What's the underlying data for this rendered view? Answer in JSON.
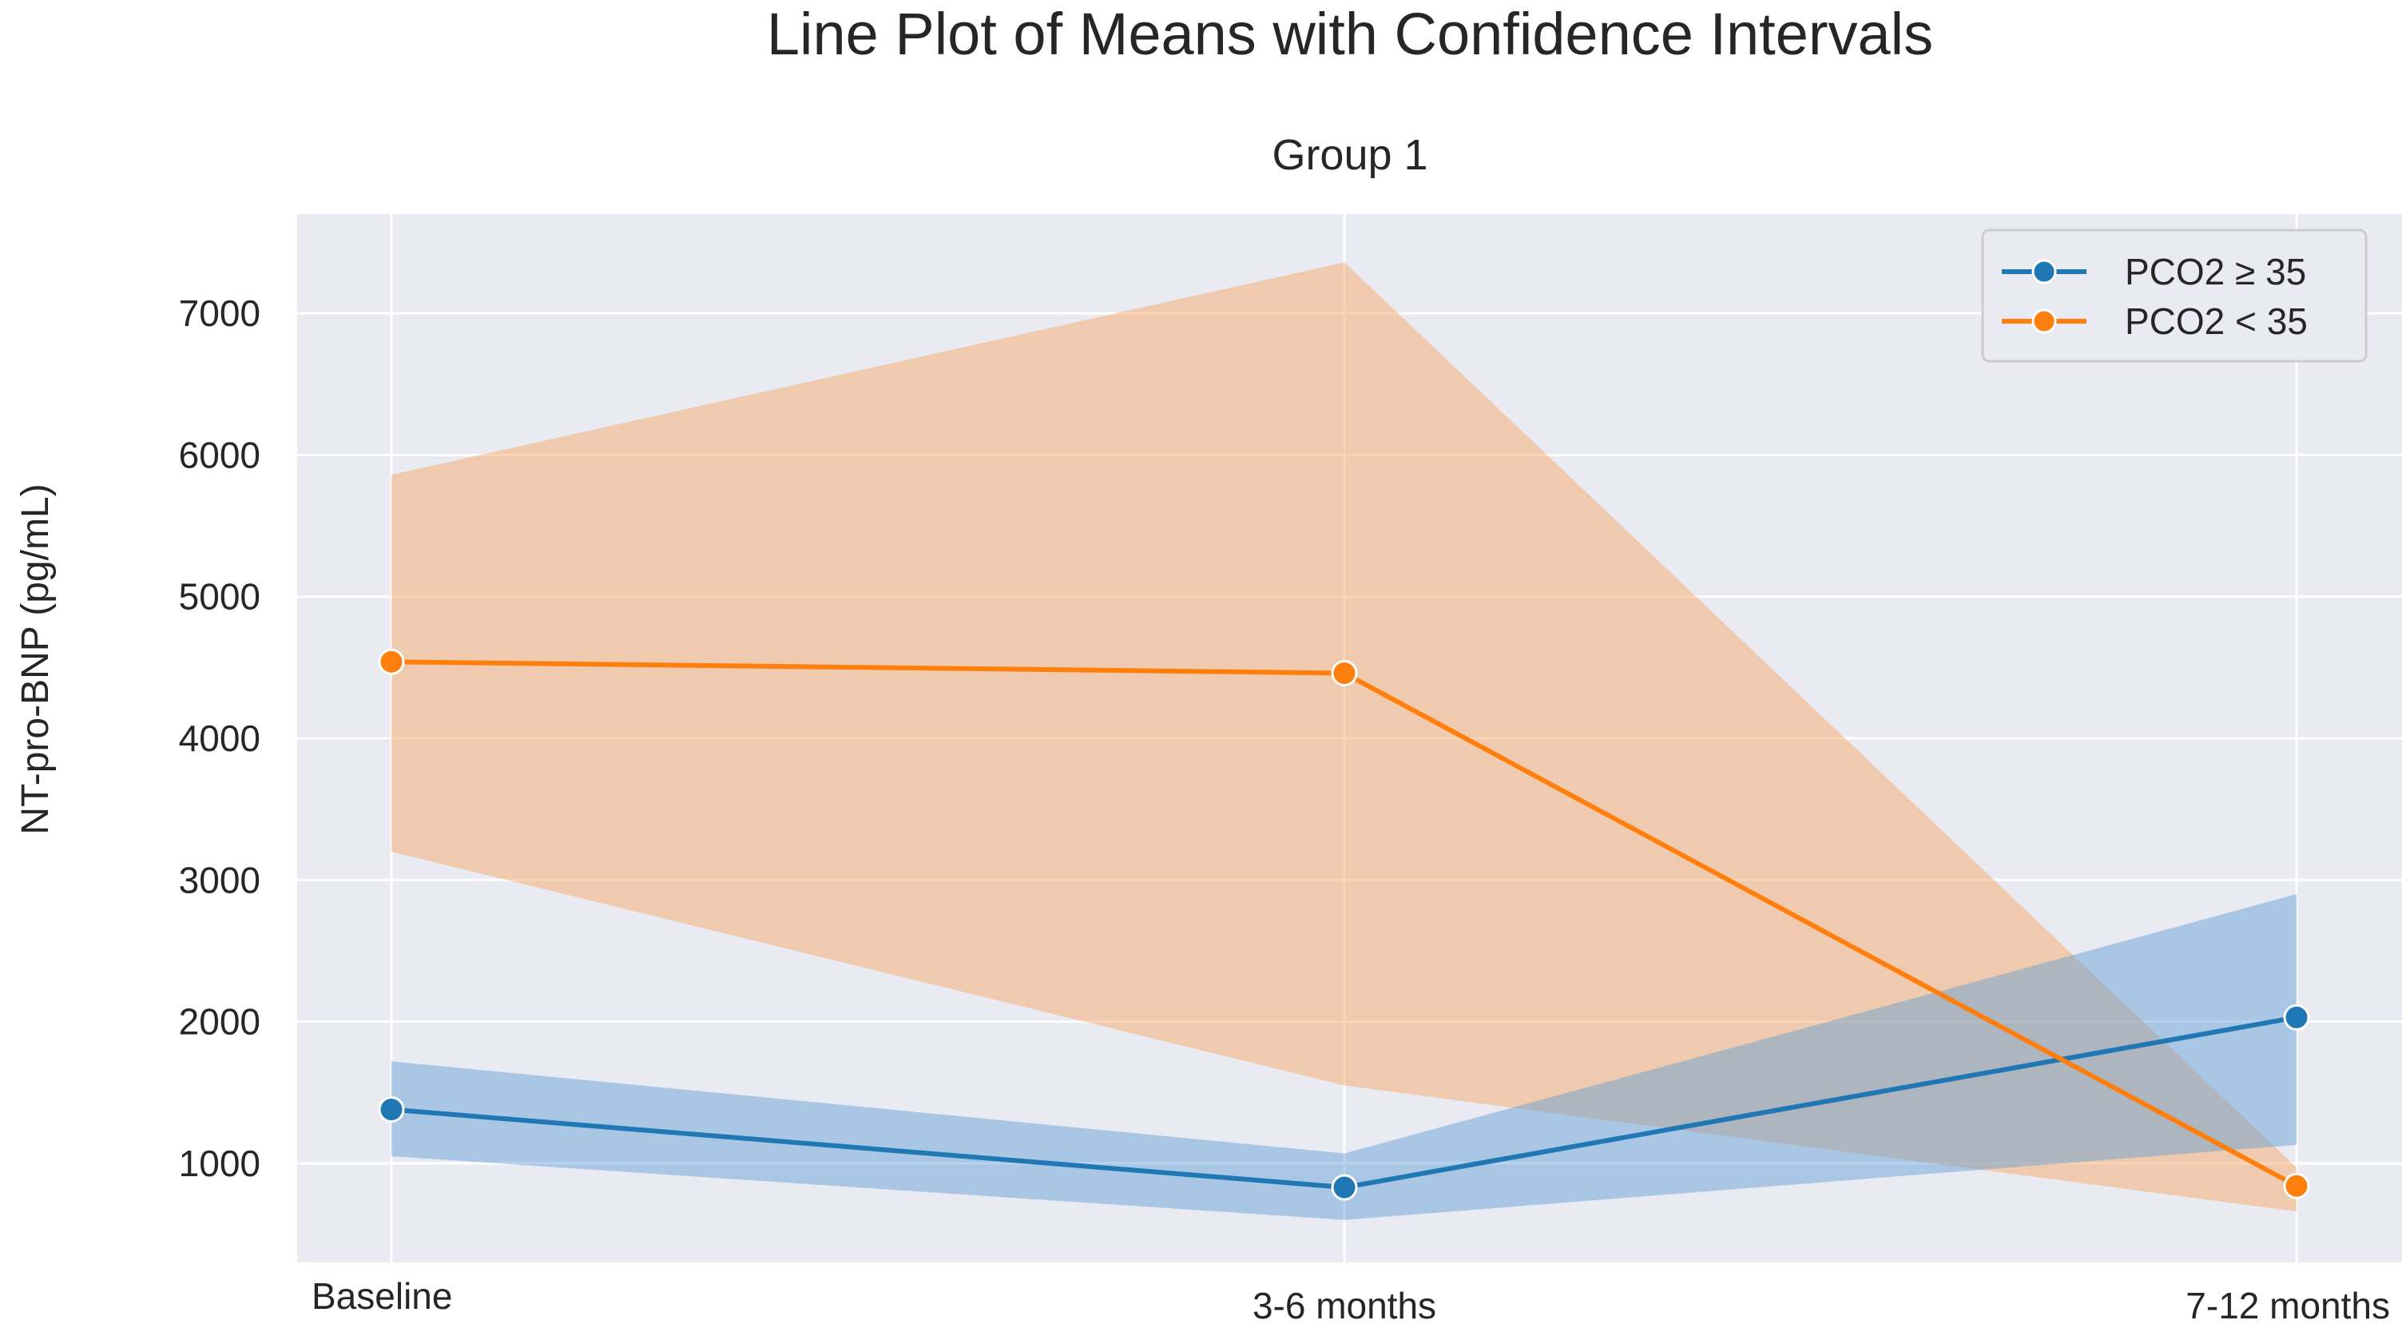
{
  "chart_data": {
    "type": "line",
    "title": "Line Plot of Means with Confidence Intervals",
    "subtitle": "Group 1",
    "xlabel": "",
    "ylabel": "NT-pro-BNP (pg/mL)",
    "categories": [
      "Baseline",
      "3-6 months",
      "7-12 months"
    ],
    "yticks": [
      1000,
      2000,
      3000,
      4000,
      5000,
      6000,
      7000
    ],
    "ylim": [
      300,
      7700
    ],
    "grid": true,
    "legend_position": "top-right",
    "series": [
      {
        "name": "PCO2 ≥ 35",
        "color": "#1f77b4",
        "fill_color": "#5b9bd5",
        "values": [
          1380,
          830,
          2030
        ],
        "ci_low": [
          1050,
          600,
          1130
        ],
        "ci_high": [
          1720,
          1070,
          2900
        ]
      },
      {
        "name": "PCO2 < 35",
        "color": "#ff7f0e",
        "fill_color": "#f5a96a",
        "values": [
          4540,
          4460,
          840
        ],
        "ci_low": [
          3200,
          1550,
          660
        ],
        "ci_high": [
          5860,
          7360,
          970
        ]
      }
    ]
  }
}
